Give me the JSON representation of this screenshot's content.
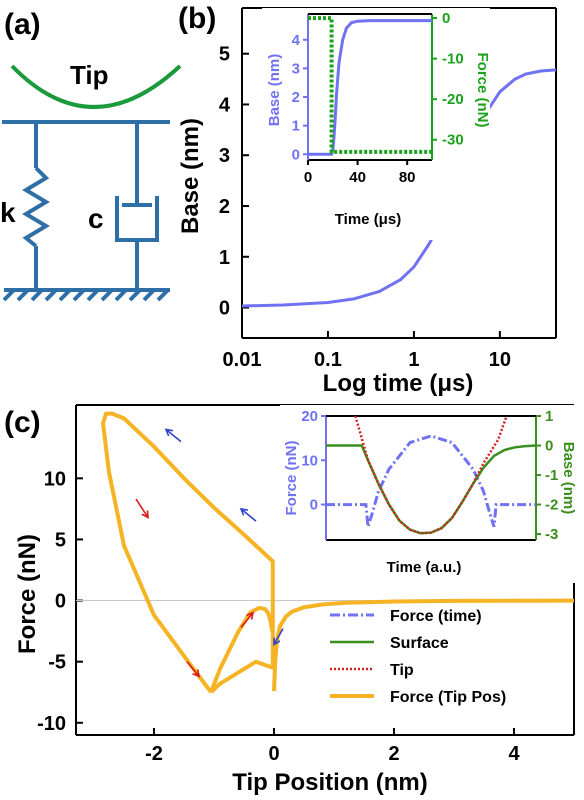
{
  "colors": {
    "spring": "#2f6fa8",
    "tip_curve": "#1a9a3a",
    "base_curve": "#6f72f2",
    "inset_force": "#1aa21a",
    "force_time": "#6f72f2",
    "surface": "#3a8f1e",
    "tip_dotted": "#d42020",
    "force_tip_pos": "#f6b324",
    "arrow_red": "#d81b1b",
    "arrow_blue": "#3344cc"
  },
  "panel_a": {
    "label": "(a)",
    "tip_label": "Tip",
    "spring_label": "k",
    "damper_label": "c"
  },
  "chart_data": [
    {
      "panel": "(b)",
      "type": "line",
      "xlabel": "Log time (μs)",
      "ylabel": "Base (nm)",
      "xscale": "log",
      "xlim": [
        0.01,
        45
      ],
      "ylim": [
        -0.6,
        5.9
      ],
      "xticks": [
        {
          "v": 0.01,
          "t": "0.01"
        },
        {
          "v": 0.1,
          "t": "0.1"
        },
        {
          "v": 1,
          "t": "1"
        },
        {
          "v": 10,
          "t": "10"
        }
      ],
      "yticks": [
        0,
        1,
        2,
        3,
        4,
        5
      ],
      "series": [
        {
          "x": [
            0.01,
            0.03,
            0.1,
            0.2,
            0.4,
            0.7,
            1,
            1.5,
            2,
            3,
            4,
            5,
            7,
            10,
            15,
            20,
            30,
            45
          ],
          "y": [
            0.03,
            0.05,
            0.1,
            0.17,
            0.32,
            0.55,
            0.8,
            1.25,
            1.65,
            2.35,
            2.9,
            3.3,
            3.85,
            4.25,
            4.5,
            4.6,
            4.66,
            4.68
          ]
        }
      ],
      "inset": {
        "type": "line",
        "xlabel": "Time (μs)",
        "ylabel": "Base (nm)",
        "y2label": "Force (nN)",
        "xlim": [
          0,
          100
        ],
        "ylim": [
          -0.2,
          4.9
        ],
        "y2lim": [
          -35,
          1
        ],
        "xticks": [
          0,
          40,
          80
        ],
        "yticks": [
          0,
          1,
          2,
          3,
          4
        ],
        "y2ticks": [
          0,
          -10,
          -20,
          -30
        ],
        "series": [
          {
            "axis": "left",
            "style": "solid",
            "x": [
              0,
              19,
              20,
              21,
              22,
              23,
              25,
              28,
              31,
              35,
              40,
              50,
              60,
              80,
              100
            ],
            "y": [
              0,
              0,
              0.15,
              0.6,
              1.3,
              2.1,
              3.2,
              4.0,
              4.4,
              4.6,
              4.65,
              4.67,
              4.67,
              4.67,
              4.67
            ]
          },
          {
            "axis": "right",
            "style": "dotted",
            "x": [
              0,
              19,
              19,
              21,
              23,
              100
            ],
            "y": [
              0,
              0,
              -33,
              -33,
              -33,
              -33
            ]
          }
        ]
      }
    },
    {
      "panel": "(c)",
      "type": "line",
      "xlabel": "Tip Position (nm)",
      "ylabel": "Force (nN)",
      "xlim": [
        -3.3,
        5
      ],
      "ylim": [
        -11,
        16
      ],
      "xticks": [
        -2,
        0,
        2,
        4
      ],
      "yticks": [
        -10,
        -5,
        0,
        5,
        10
      ],
      "series": [
        {
          "x": [
            -1.05,
            -1.4,
            -2.0,
            -2.5,
            -2.75,
            -2.85,
            -2.8,
            -2.7,
            -2.5,
            -2.0,
            -1.5,
            -1.0,
            -0.5,
            -0.02,
            -0.02,
            -0.3,
            -0.6,
            -0.9,
            -1.05
          ],
          "y": [
            -7.5,
            -5.2,
            -1.2,
            4.5,
            10.5,
            14.5,
            15.3,
            15.3,
            14.9,
            12.6,
            10.0,
            7.6,
            5.4,
            3.2,
            -5.5,
            -5.0,
            -5.9,
            -6.8,
            -7.5
          ]
        },
        {
          "x": [
            0,
            0.02,
            0.05,
            0.1,
            0.2,
            0.3,
            0.5,
            0.8,
            1.2,
            2,
            3,
            4,
            5
          ],
          "y": [
            -7.4,
            -5.0,
            -3.2,
            -2.1,
            -1.3,
            -0.9,
            -0.55,
            -0.32,
            -0.18,
            -0.08,
            -0.03,
            -0.01,
            0
          ]
        },
        {
          "x": [
            -0.03,
            -0.06,
            -0.1,
            -0.15,
            -0.25,
            -0.4,
            -0.6,
            -0.9,
            -1.05
          ],
          "y": [
            -2.5,
            -1.6,
            -1.0,
            -0.7,
            -0.6,
            -1.0,
            -2.6,
            -5.6,
            -7.5
          ]
        }
      ],
      "arrows": [
        {
          "x": -2.3,
          "y": 8.3,
          "color": "red",
          "dx": 0.2,
          "dy": -1.5
        },
        {
          "x": -1.45,
          "y": -5.0,
          "color": "red",
          "dx": 0.2,
          "dy": -1.2
        },
        {
          "x": -0.55,
          "y": -2.2,
          "color": "red",
          "dx": 0.2,
          "dy": 1.2
        },
        {
          "x": -1.55,
          "y": 13.0,
          "color": "blue",
          "dx": -0.25,
          "dy": 1.0
        },
        {
          "x": -0.3,
          "y": 6.5,
          "color": "blue",
          "dx": -0.25,
          "dy": 1.0
        },
        {
          "x": 0.15,
          "y": -2.3,
          "color": "blue",
          "dx": -0.15,
          "dy": -1.3
        }
      ],
      "legend": {
        "placement": "lower-right",
        "entries": [
          {
            "label": "Force (time)",
            "style": "dashdot",
            "color": "force_time"
          },
          {
            "label": "Surface",
            "style": "solid",
            "color": "surface"
          },
          {
            "label": "Tip",
            "style": "dotted",
            "color": "tip_dotted"
          },
          {
            "label": "Force (Tip Pos)",
            "style": "thick",
            "color": "force_tip_pos"
          }
        ]
      },
      "inset": {
        "type": "line",
        "xlabel": "Time (a.u.)",
        "ylabel": "Force (nN)",
        "y2label": "Base (nm)",
        "xlim": [
          0,
          1
        ],
        "ylim": [
          -8,
          20
        ],
        "y2lim": [
          -3.2,
          1
        ],
        "yticks": [
          0,
          10,
          20
        ],
        "y2ticks": [
          1,
          0,
          -1,
          -2,
          -3
        ],
        "series": [
          {
            "name": "Force (time)",
            "axis": "left",
            "style": "dashdot",
            "x": [
              0,
              0.19,
              0.2,
              0.22,
              0.25,
              0.3,
              0.4,
              0.5,
              0.6,
              0.7,
              0.75,
              0.78,
              0.8,
              0.81,
              0.85,
              1
            ],
            "y": [
              0,
              0,
              -5,
              -2,
              3,
              8,
              14,
              15.5,
              14,
              8,
              3,
              -2,
              -5,
              0,
              0,
              0
            ]
          },
          {
            "name": "Surface",
            "axis": "right",
            "style": "solid",
            "x": [
              0,
              0.17,
              0.2,
              0.25,
              0.3,
              0.35,
              0.4,
              0.45,
              0.5,
              0.55,
              0.6,
              0.65,
              0.7,
              0.75,
              0.8,
              0.85,
              0.9,
              0.95,
              1
            ],
            "y": [
              0,
              0,
              -0.5,
              -1.3,
              -2.0,
              -2.55,
              -2.85,
              -2.97,
              -2.95,
              -2.8,
              -2.45,
              -1.9,
              -1.3,
              -0.75,
              -0.35,
              -0.15,
              -0.06,
              -0.02,
              0
            ]
          },
          {
            "name": "Tip",
            "axis": "right",
            "style": "dotted",
            "x": [
              0.14,
              0.2,
              0.25,
              0.3,
              0.35,
              0.4,
              0.45,
              0.5,
              0.55,
              0.6,
              0.65,
              0.7,
              0.75,
              0.82,
              0.86
            ],
            "y": [
              1,
              -0.5,
              -1.3,
              -2.0,
              -2.55,
              -2.85,
              -2.97,
              -2.95,
              -2.8,
              -2.45,
              -1.9,
              -1.3,
              -0.6,
              0.2,
              1
            ]
          }
        ]
      }
    }
  ]
}
